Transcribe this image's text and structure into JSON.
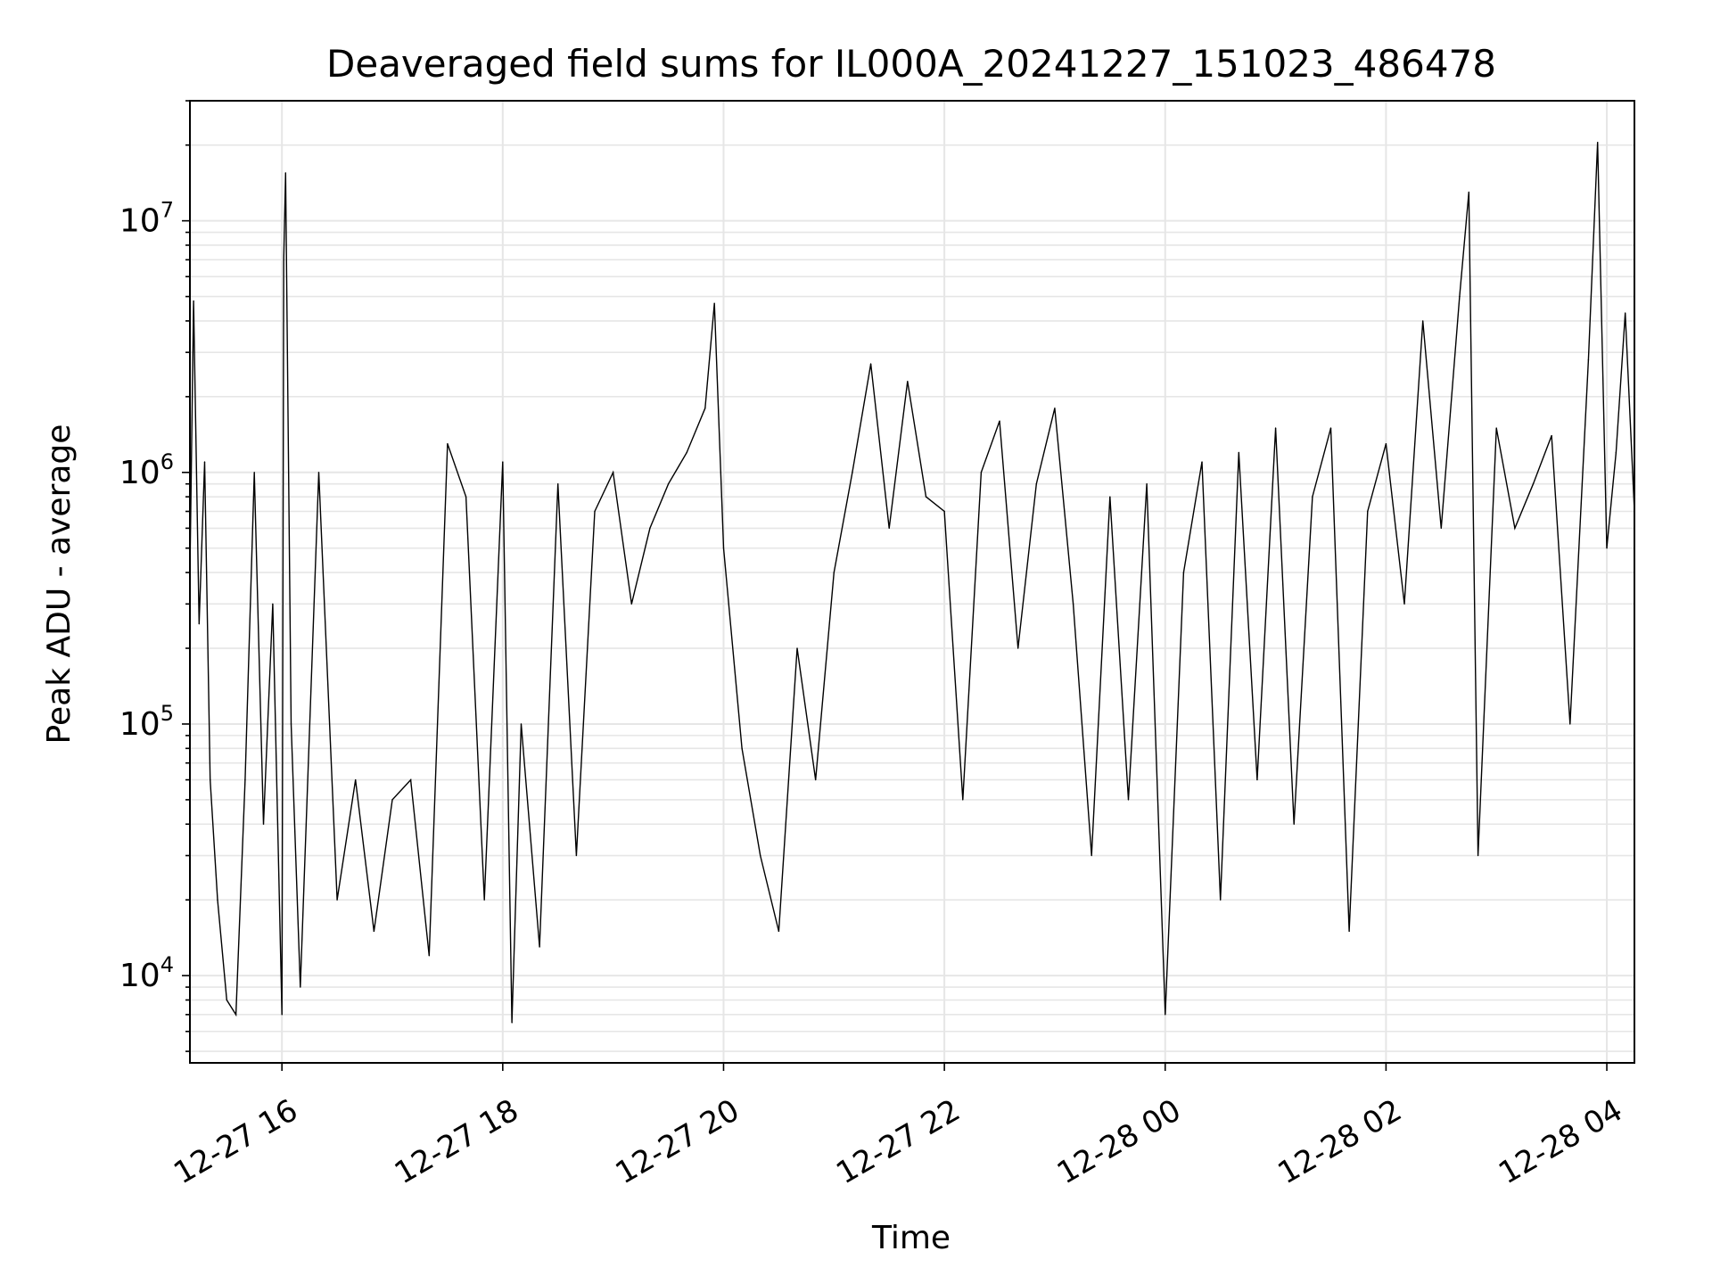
{
  "chart_data": {
    "type": "line",
    "title": "Deaveraged field sums for IL000A_20241227_151023_486478",
    "xlabel": "Time",
    "ylabel": "Peak ADU - average",
    "yscale": "log",
    "ylim": [
      4500,
      30000000
    ],
    "xlim": [
      "2024-12-27 15:10",
      "2024-12-28 04:15"
    ],
    "grid": true,
    "line_color": "#000000",
    "grid_color": "#e6e6e6",
    "x_ticks": [
      {
        "t": "2024-12-27 16:00",
        "label": "12-27 16"
      },
      {
        "t": "2024-12-27 18:00",
        "label": "12-27 18"
      },
      {
        "t": "2024-12-27 20:00",
        "label": "12-27 20"
      },
      {
        "t": "2024-12-27 22:00",
        "label": "12-27 22"
      },
      {
        "t": "2024-12-28 00:00",
        "label": "12-28 00"
      },
      {
        "t": "2024-12-28 02:00",
        "label": "12-28 02"
      },
      {
        "t": "2024-12-28 04:00",
        "label": "12-28 04"
      }
    ],
    "y_ticks": [
      {
        "value": 10000,
        "base": "10",
        "exp": "4"
      },
      {
        "value": 100000,
        "base": "10",
        "exp": "5"
      },
      {
        "value": 1000000,
        "base": "10",
        "exp": "6"
      },
      {
        "value": 10000000,
        "base": "10",
        "exp": "7"
      }
    ],
    "series": [
      {
        "style": "noisy-time-series",
        "data": [
          [
            "2024-12-27 15:10",
            400000
          ],
          [
            "2024-12-27 15:12",
            4800000
          ],
          [
            "2024-12-27 15:15",
            250000
          ],
          [
            "2024-12-27 15:18",
            1100000
          ],
          [
            "2024-12-27 15:21",
            60000
          ],
          [
            "2024-12-27 15:25",
            20000
          ],
          [
            "2024-12-27 15:30",
            8000
          ],
          [
            "2024-12-27 15:35",
            7000
          ],
          [
            "2024-12-27 15:40",
            60000
          ],
          [
            "2024-12-27 15:45",
            1000000
          ],
          [
            "2024-12-27 15:50",
            40000
          ],
          [
            "2024-12-27 15:55",
            300000
          ],
          [
            "2024-12-27 16:00",
            7000
          ],
          [
            "2024-12-27 16:01",
            7000000
          ],
          [
            "2024-12-27 16:02",
            15500000
          ],
          [
            "2024-12-27 16:05",
            100000
          ],
          [
            "2024-12-27 16:10",
            9000
          ],
          [
            "2024-12-27 16:20",
            1000000
          ],
          [
            "2024-12-27 16:30",
            20000
          ],
          [
            "2024-12-27 16:40",
            60000
          ],
          [
            "2024-12-27 16:50",
            15000
          ],
          [
            "2024-12-27 17:00",
            50000
          ],
          [
            "2024-12-27 17:10",
            60000
          ],
          [
            "2024-12-27 17:20",
            12000
          ],
          [
            "2024-12-27 17:30",
            1300000
          ],
          [
            "2024-12-27 17:40",
            800000
          ],
          [
            "2024-12-27 17:50",
            20000
          ],
          [
            "2024-12-27 18:00",
            1100000
          ],
          [
            "2024-12-27 18:05",
            6500
          ],
          [
            "2024-12-27 18:10",
            100000
          ],
          [
            "2024-12-27 18:20",
            13000
          ],
          [
            "2024-12-27 18:30",
            900000
          ],
          [
            "2024-12-27 18:40",
            30000
          ],
          [
            "2024-12-27 18:50",
            700000
          ],
          [
            "2024-12-27 19:00",
            1000000
          ],
          [
            "2024-12-27 19:10",
            300000
          ],
          [
            "2024-12-27 19:20",
            600000
          ],
          [
            "2024-12-27 19:30",
            900000
          ],
          [
            "2024-12-27 19:40",
            1200000
          ],
          [
            "2024-12-27 19:50",
            1800000
          ],
          [
            "2024-12-27 19:55",
            4700000
          ],
          [
            "2024-12-27 20:00",
            500000
          ],
          [
            "2024-12-27 20:10",
            80000
          ],
          [
            "2024-12-27 20:20",
            30000
          ],
          [
            "2024-12-27 20:30",
            15000
          ],
          [
            "2024-12-27 20:40",
            200000
          ],
          [
            "2024-12-27 20:50",
            60000
          ],
          [
            "2024-12-27 21:00",
            400000
          ],
          [
            "2024-12-27 21:10",
            1000000
          ],
          [
            "2024-12-27 21:20",
            2700000
          ],
          [
            "2024-12-27 21:30",
            600000
          ],
          [
            "2024-12-27 21:40",
            2300000
          ],
          [
            "2024-12-27 21:50",
            800000
          ],
          [
            "2024-12-27 22:00",
            700000
          ],
          [
            "2024-12-27 22:10",
            50000
          ],
          [
            "2024-12-27 22:20",
            1000000
          ],
          [
            "2024-12-27 22:30",
            1600000
          ],
          [
            "2024-12-27 22:40",
            200000
          ],
          [
            "2024-12-27 22:50",
            900000
          ],
          [
            "2024-12-27 23:00",
            1800000
          ],
          [
            "2024-12-27 23:10",
            300000
          ],
          [
            "2024-12-27 23:20",
            30000
          ],
          [
            "2024-12-27 23:30",
            800000
          ],
          [
            "2024-12-27 23:40",
            50000
          ],
          [
            "2024-12-27 23:50",
            900000
          ],
          [
            "2024-12-28 00:00",
            7000
          ],
          [
            "2024-12-28 00:10",
            400000
          ],
          [
            "2024-12-28 00:20",
            1100000
          ],
          [
            "2024-12-28 00:30",
            20000
          ],
          [
            "2024-12-28 00:40",
            1200000
          ],
          [
            "2024-12-28 00:50",
            60000
          ],
          [
            "2024-12-28 01:00",
            1500000
          ],
          [
            "2024-12-28 01:10",
            40000
          ],
          [
            "2024-12-28 01:20",
            800000
          ],
          [
            "2024-12-28 01:30",
            1500000
          ],
          [
            "2024-12-28 01:40",
            15000
          ],
          [
            "2024-12-28 01:50",
            700000
          ],
          [
            "2024-12-28 02:00",
            1300000
          ],
          [
            "2024-12-28 02:10",
            300000
          ],
          [
            "2024-12-28 02:20",
            4000000
          ],
          [
            "2024-12-28 02:30",
            600000
          ],
          [
            "2024-12-28 02:40",
            5000000
          ],
          [
            "2024-12-28 02:45",
            13000000
          ],
          [
            "2024-12-28 02:50",
            30000
          ],
          [
            "2024-12-28 03:00",
            1500000
          ],
          [
            "2024-12-28 03:10",
            600000
          ],
          [
            "2024-12-28 03:20",
            900000
          ],
          [
            "2024-12-28 03:30",
            1400000
          ],
          [
            "2024-12-28 03:40",
            100000
          ],
          [
            "2024-12-28 03:50",
            2800000
          ],
          [
            "2024-12-28 03:55",
            20500000
          ],
          [
            "2024-12-28 04:00",
            500000
          ],
          [
            "2024-12-28 04:05",
            1200000
          ],
          [
            "2024-12-28 04:10",
            4300000
          ],
          [
            "2024-12-28 04:15",
            700000
          ]
        ]
      }
    ]
  }
}
